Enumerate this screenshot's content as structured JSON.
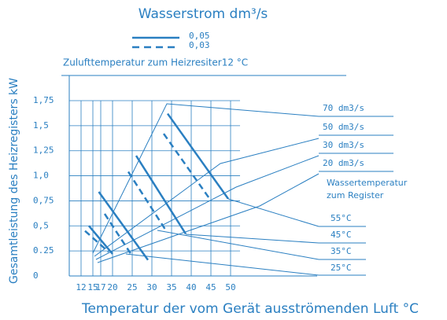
{
  "chart_data": {
    "type": "line",
    "title": "Wasserstrom dm³/s",
    "subtitle": "Zulufttemperatur zum Heizresiter12 °C",
    "x_label": "Temperatur der vom Gerät ausströmenden Luft °C",
    "y_label": "Gesamtleistung des Heizregisters kW",
    "color": "#2a7fc1",
    "xlim": [
      9,
      72
    ],
    "xticks": [
      12,
      15,
      17,
      20,
      25,
      30,
      35,
      40,
      45,
      50
    ],
    "ylim": [
      0,
      1.75
    ],
    "yticks": [
      0,
      {
        "value": 0.25,
        "label": "0.25"
      },
      {
        "value": 0.5,
        "label": "0,5"
      },
      {
        "value": 0.75,
        "label": "0,75"
      },
      {
        "value": 1.0,
        "label": "1,0"
      },
      {
        "value": 1.25,
        "label": "1,25"
      },
      {
        "value": 1.5,
        "label": "1,5"
      },
      {
        "value": 1.75,
        "label": "1,75"
      }
    ],
    "grid": true,
    "series": [
      {
        "name": "0,05",
        "dashed": false,
        "segments": [
          {
            "x": [
              34,
              49.4
            ],
            "y": [
              1.62,
              0.77
            ]
          },
          {
            "x": [
              26,
              38.6
            ],
            "y": [
              1.2,
              0.42
            ]
          },
          {
            "x": [
              16.5,
              29
            ],
            "y": [
              0.84,
              0.16
            ]
          },
          {
            "x": [
              14,
              20
            ],
            "y": [
              0.5,
              0.22
            ]
          }
        ]
      },
      {
        "name": "0,03",
        "dashed": true,
        "segments": [
          {
            "x": [
              33,
              44.5
            ],
            "y": [
              1.42,
              0.78
            ]
          },
          {
            "x": [
              24,
              33.8
            ],
            "y": [
              1.04,
              0.44
            ]
          },
          {
            "x": [
              18,
              25
            ],
            "y": [
              0.62,
              0.2
            ]
          },
          {
            "x": [
              13,
              19
            ],
            "y": [
              0.45,
              0.24
            ]
          }
        ]
      }
    ],
    "flow_labels": [
      "70 dm3/s",
      "50 dm3/s",
      "30 dm3/s",
      "20 dm3/s"
    ],
    "water_temp_title": [
      "Wassertemperatur",
      "zum Register"
    ],
    "water_temp_labels": [
      "55°C",
      "45°C",
      "35°C",
      "25°C"
    ]
  }
}
